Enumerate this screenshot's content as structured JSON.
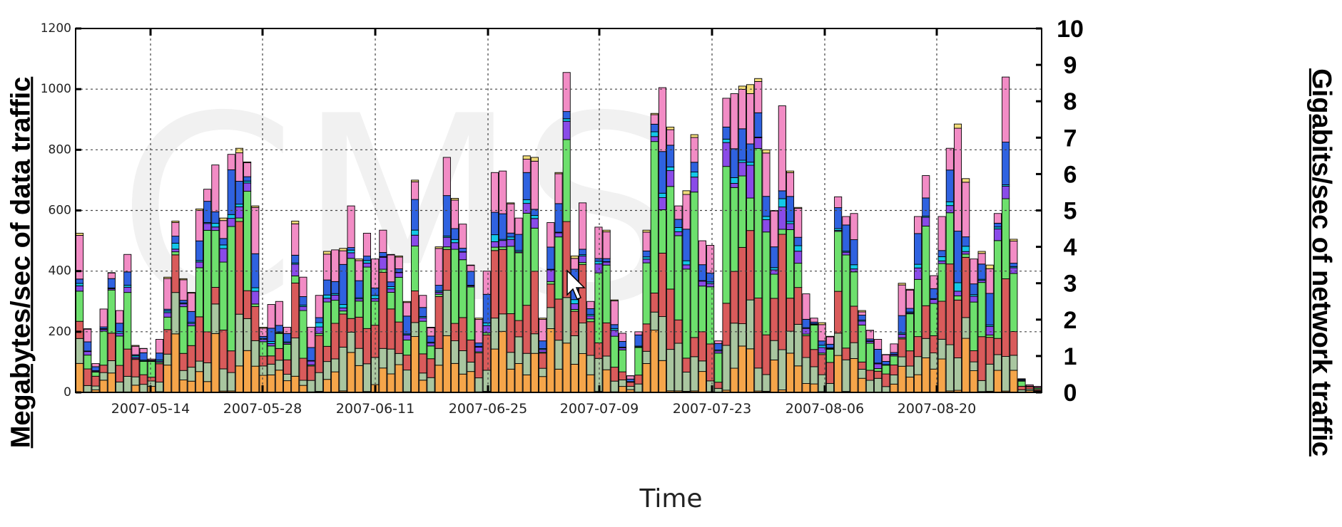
{
  "chart_data": {
    "type": "bar",
    "stacked": true,
    "xlabel": "Time",
    "ylabel_left": "Megabytes/sec of data traffic",
    "ylabel_right": "Gigabits/sec of network traffic",
    "ylim_left": [
      0,
      1200
    ],
    "ylim_right": [
      0,
      10
    ],
    "yticks_left": [
      "0",
      "200",
      "400",
      "600",
      "800",
      "1000",
      "1200"
    ],
    "yticks_right": [
      "0",
      "1",
      "2",
      "3",
      "4",
      "5",
      "6",
      "7",
      "8",
      "9",
      "10"
    ],
    "x_tick_labels": [
      "2007-05-14",
      "2007-05-28",
      "2007-06-11",
      "2007-06-25",
      "2007-07-09",
      "2007-07-23",
      "2007-08-06",
      "2007-08-20"
    ],
    "grid": true,
    "legend": "none",
    "series_colors": [
      "#f5a54a",
      "#a9c6a0",
      "#d95b5b",
      "#6de06d",
      "#8a4be8",
      "#12c8e8",
      "#2f62e0",
      "#f28cc5",
      "#f2dc7a"
    ],
    "totals": [
      525,
      210,
      95,
      275,
      395,
      270,
      455,
      155,
      145,
      110,
      175,
      380,
      565,
      375,
      330,
      605,
      670,
      750,
      575,
      785,
      805,
      760,
      615,
      215,
      290,
      300,
      215,
      565,
      380,
      215,
      320,
      465,
      470,
      475,
      615,
      440,
      525,
      440,
      535,
      455,
      450,
      300,
      700,
      320,
      215,
      480,
      775,
      640,
      555,
      420,
      245,
      400,
      725,
      730,
      625,
      575,
      780,
      775,
      245,
      560,
      725,
      1055,
      450,
      625,
      300,
      545,
      535,
      305,
      195,
      55,
      200,
      535,
      920,
      1005,
      875,
      615,
      665,
      850,
      500,
      485,
      170,
      970,
      985,
      1010,
      1015,
      1035,
      800,
      600,
      945,
      730,
      610,
      325,
      245,
      230,
      185,
      645,
      580,
      590,
      270,
      205,
      175,
      125,
      160,
      360,
      340,
      580,
      715,
      385,
      580,
      805,
      885,
      705,
      440,
      465,
      420,
      590,
      1040,
      505,
      45,
      25,
      20
    ],
    "point_date_labels": [
      "2007-05-14",
      "2007-05-28",
      "2007-06-11",
      "2007-06-25",
      "2007-07-09",
      "2007-07-23",
      "2007-08-06",
      "2007-08-20"
    ]
  }
}
